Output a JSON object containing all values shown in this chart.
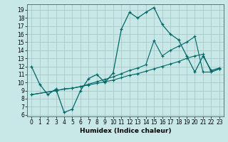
{
  "title": "",
  "xlabel": "Humidex (Indice chaleur)",
  "background_color": "#c8e8e8",
  "grid_color": "#a0c4c4",
  "line_color": "#006666",
  "xlim": [
    -0.5,
    23.5
  ],
  "ylim": [
    5.8,
    19.7
  ],
  "xticks": [
    0,
    1,
    2,
    3,
    4,
    5,
    6,
    7,
    8,
    9,
    10,
    11,
    12,
    13,
    14,
    15,
    16,
    17,
    18,
    19,
    20,
    21,
    22,
    23
  ],
  "yticks": [
    6,
    7,
    8,
    9,
    10,
    11,
    12,
    13,
    14,
    15,
    16,
    17,
    18,
    19
  ],
  "line1_x": [
    0,
    1,
    2,
    3,
    4,
    5,
    6,
    7,
    8,
    9,
    10,
    11,
    12,
    13,
    14,
    15,
    16,
    17,
    18,
    19,
    20,
    21,
    22,
    23
  ],
  "line1_y": [
    12.0,
    9.8,
    8.5,
    9.2,
    6.3,
    6.7,
    9.0,
    10.5,
    11.0,
    10.0,
    11.2,
    16.6,
    18.7,
    18.0,
    18.7,
    19.3,
    17.2,
    16.0,
    15.3,
    13.3,
    11.3,
    13.3,
    11.5,
    11.8
  ],
  "line2_x": [
    0,
    3,
    4,
    5,
    6,
    7,
    8,
    9,
    10,
    11,
    12,
    13,
    14,
    15,
    16,
    17,
    18,
    19,
    20,
    21,
    22,
    23
  ],
  "line2_y": [
    8.5,
    9.0,
    9.2,
    9.3,
    9.5,
    9.7,
    9.9,
    10.1,
    10.3,
    10.6,
    10.9,
    11.1,
    11.4,
    11.7,
    12.0,
    12.3,
    12.6,
    13.0,
    13.3,
    13.5,
    11.3,
    11.7
  ],
  "line3_x": [
    0,
    3,
    4,
    5,
    6,
    7,
    8,
    9,
    10,
    11,
    12,
    13,
    14,
    15,
    16,
    17,
    18,
    19,
    20,
    21,
    22,
    23
  ],
  "line3_y": [
    8.5,
    9.0,
    9.2,
    9.3,
    9.5,
    9.8,
    10.1,
    10.4,
    10.7,
    11.1,
    11.5,
    11.8,
    12.2,
    15.2,
    13.3,
    14.0,
    14.5,
    15.0,
    15.7,
    11.3,
    11.3,
    11.7
  ]
}
